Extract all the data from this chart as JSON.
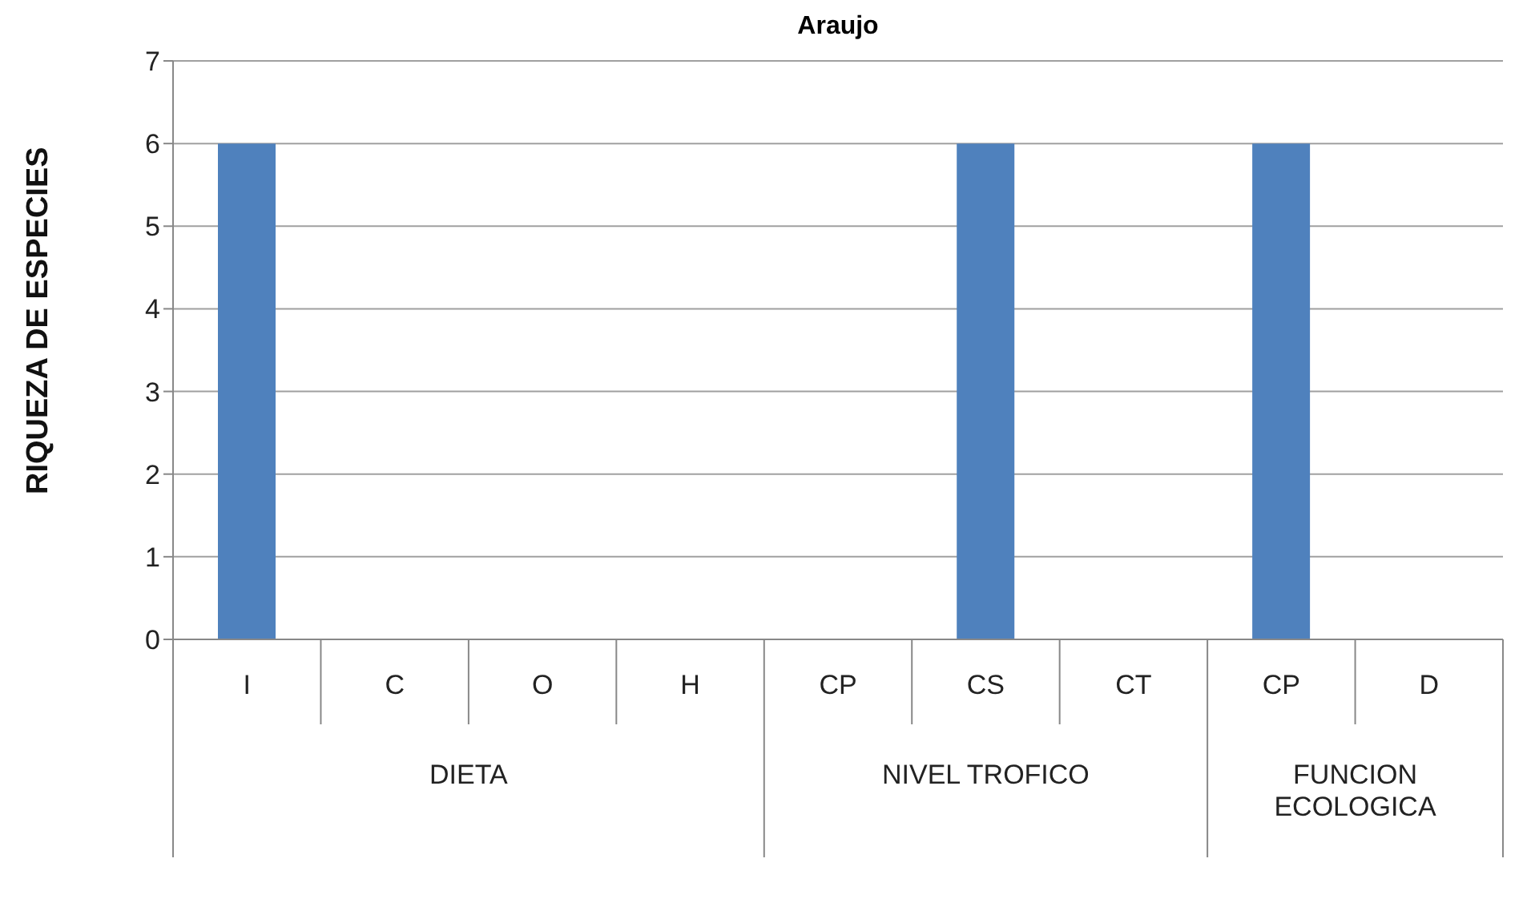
{
  "chart_data": {
    "type": "bar",
    "title": "Araujo",
    "ylabel": "RIQUEZA DE ESPECIES",
    "categories": [
      "I",
      "C",
      "O",
      "H",
      "CP",
      "CS",
      "CT",
      "CP",
      "D"
    ],
    "values": [
      6,
      0,
      0,
      0,
      0,
      6,
      0,
      6,
      0
    ],
    "color": "#4f81bd",
    "ylim": [
      0,
      7
    ],
    "yticks": [
      0,
      1,
      2,
      3,
      4,
      5,
      6,
      7
    ],
    "grid": "y",
    "annotations": [
      "DIETA",
      "NIVEL TROFICO",
      "FUNCION ECOLOGICA"
    ]
  }
}
